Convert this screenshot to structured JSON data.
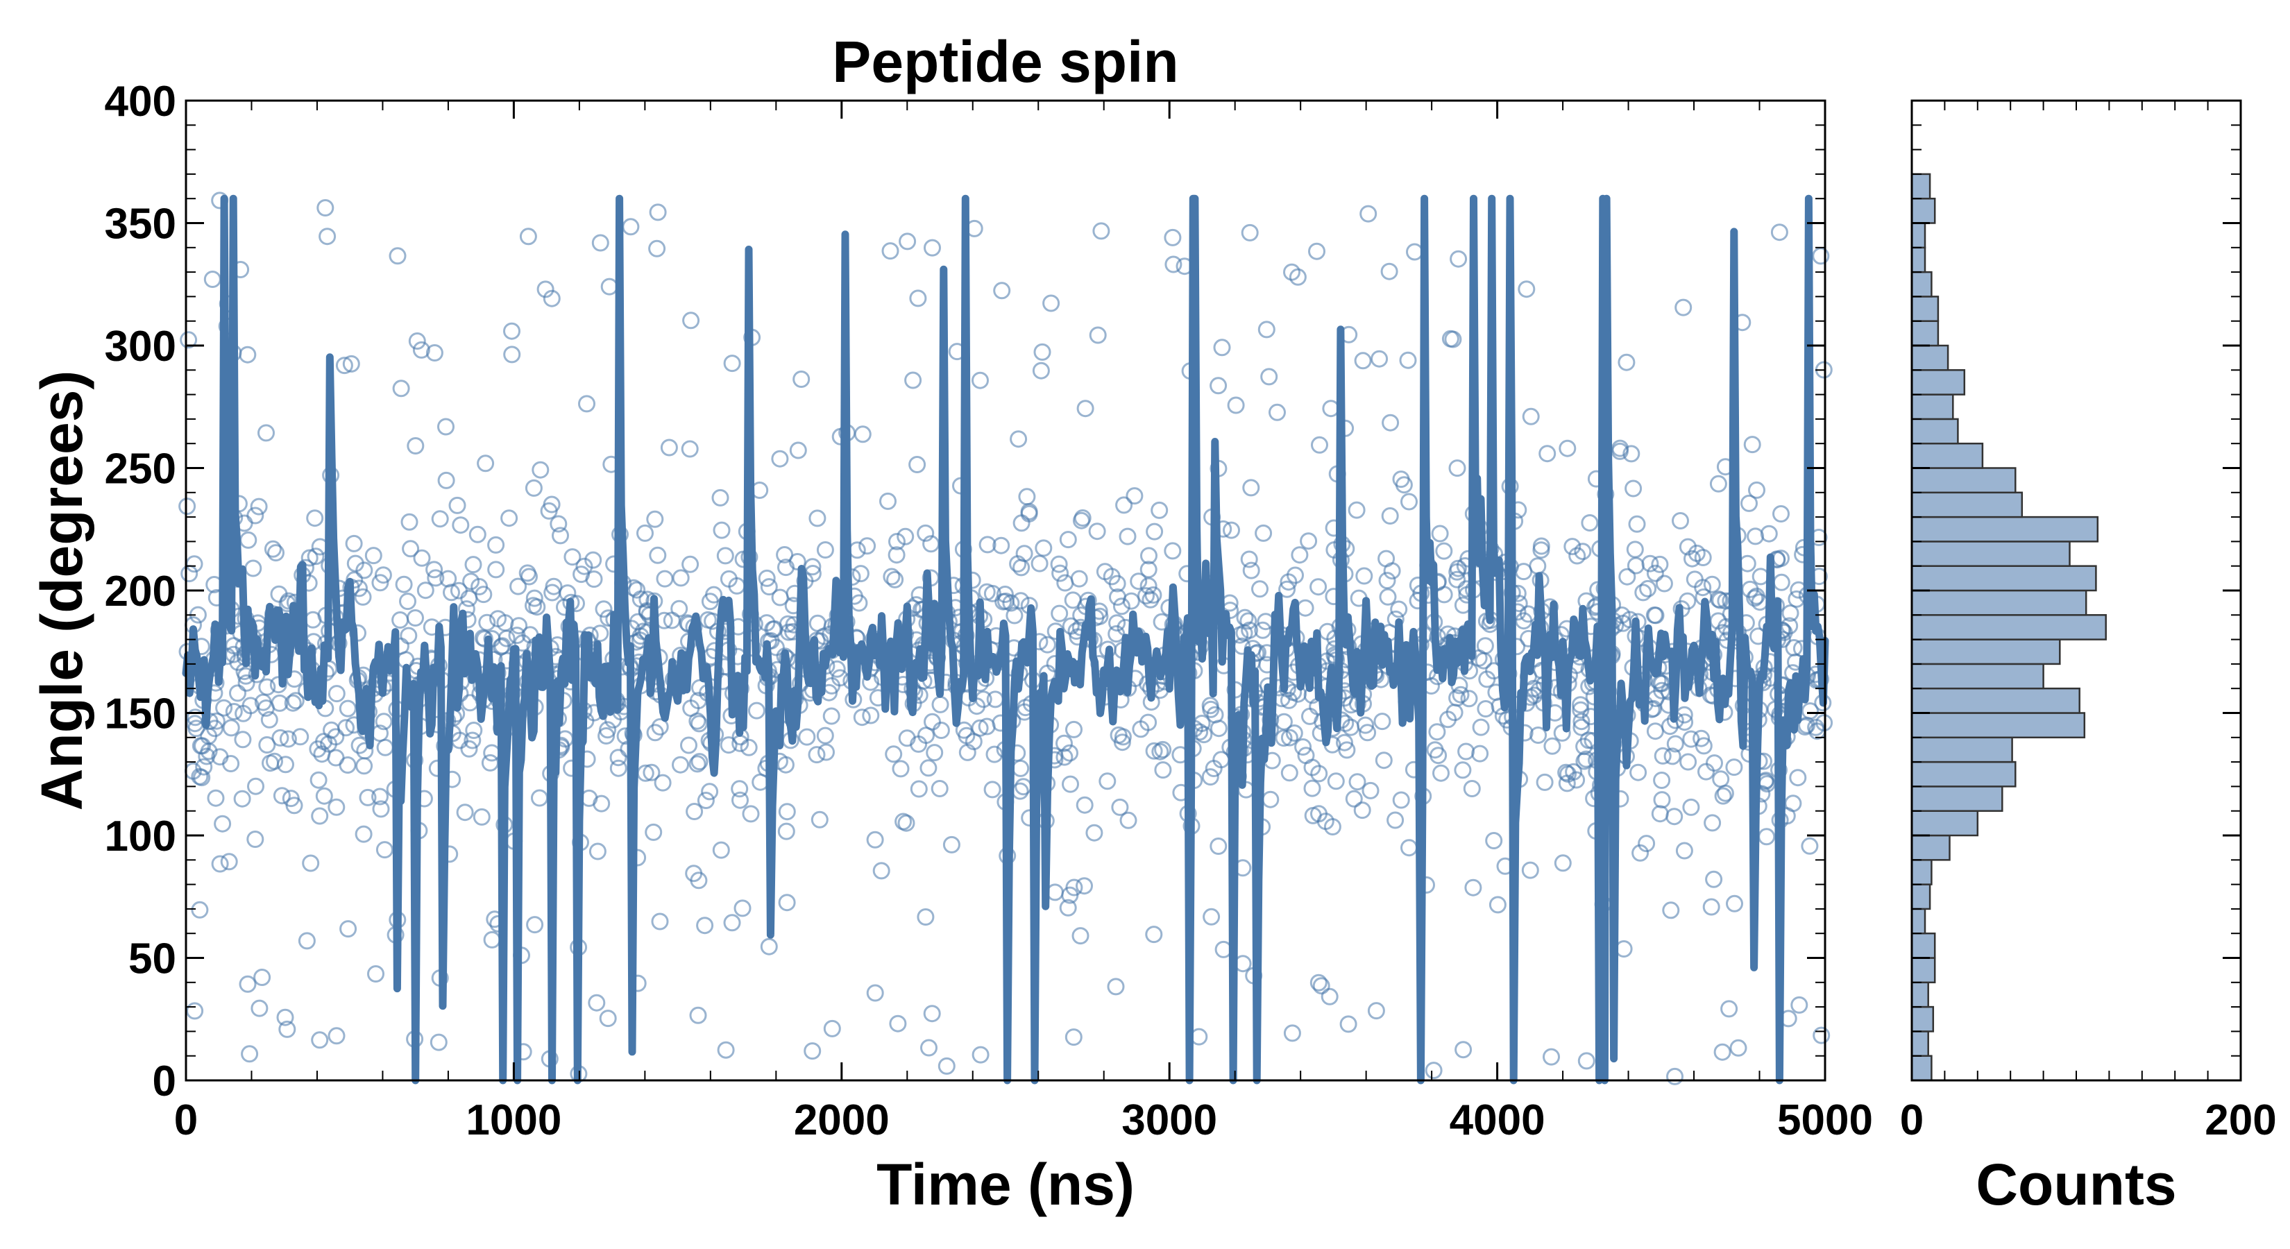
{
  "chart_data": [
    {
      "type": "scatter",
      "title": "Peptide spin",
      "xlabel": "Time (ns)",
      "ylabel": "Angle (degrees)",
      "xlim": [
        0,
        5000
      ],
      "ylim": [
        0,
        400
      ],
      "xticks": [
        "0",
        "1000",
        "2000",
        "3000",
        "4000",
        "5000"
      ],
      "yticks": [
        "0",
        "50",
        "100",
        "150",
        "200",
        "250",
        "300",
        "350",
        "400"
      ],
      "grid": false,
      "legend": "none",
      "series": [
        {
          "style": "hollow circle markers (raw samples)",
          "color": "#4777aa",
          "n_points": 1600,
          "approx_mean": 170,
          "approx_core_range": [
            110,
            230
          ],
          "approx_full_range": [
            0,
            360
          ]
        },
        {
          "style": "thick line (smoothed)",
          "color": "#4777aa",
          "x_range": [
            0,
            5000
          ],
          "approx_mean": 170
        }
      ]
    },
    {
      "type": "bar",
      "orientation": "horizontal histogram",
      "xlabel": "Counts",
      "xlim": [
        0,
        200
      ],
      "xticks": [
        "0",
        "200"
      ],
      "ylim": [
        0,
        400
      ],
      "bin_width": 10,
      "bins": [
        0,
        10,
        20,
        30,
        40,
        50,
        60,
        70,
        80,
        90,
        100,
        110,
        120,
        130,
        140,
        150,
        160,
        170,
        180,
        190,
        200,
        210,
        220,
        230,
        240,
        250,
        260,
        270,
        280,
        290,
        300,
        310,
        320,
        330,
        340,
        350,
        360,
        370,
        380,
        390
      ],
      "counts": [
        12,
        10,
        13,
        10,
        14,
        14,
        8,
        11,
        12,
        23,
        40,
        55,
        63,
        61,
        105,
        102,
        80,
        90,
        118,
        106,
        112,
        96,
        113,
        67,
        63,
        43,
        28,
        25,
        32,
        22,
        16,
        16,
        12,
        8,
        8,
        14,
        11,
        0,
        0,
        0
      ],
      "bar_color": "#9bb4d1",
      "edge_color": "#333333"
    }
  ]
}
